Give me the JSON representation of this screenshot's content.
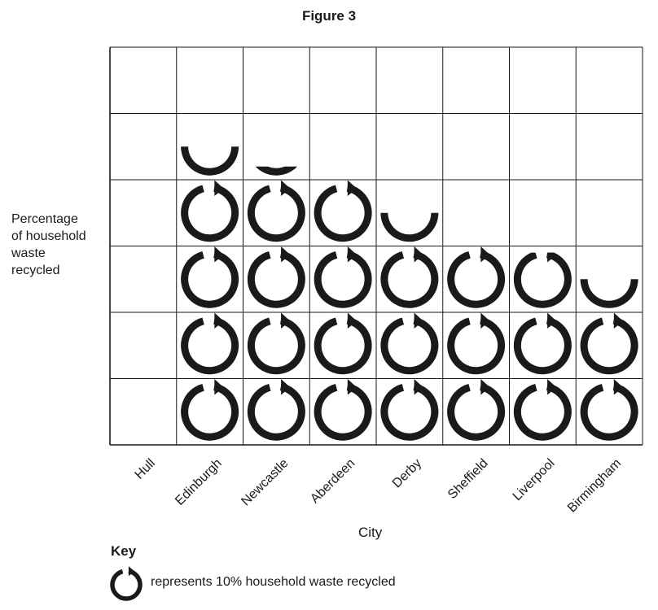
{
  "chart_data": {
    "type": "pictogram",
    "title": "Figure 3",
    "ylabel_lines": [
      "Percentage",
      "of household",
      "waste",
      "recycled"
    ],
    "xlabel": "City",
    "categories": [
      "Hull",
      "Edinburgh",
      "Newcastle",
      "Aberdeen",
      "Derby",
      "Sheffield",
      "Liverpool",
      "Birmingham"
    ],
    "values": [
      0,
      45,
      42,
      40,
      35,
      30,
      29,
      25
    ],
    "unit_per_symbol": 10,
    "ylim": [
      0,
      60
    ],
    "grid": true,
    "key": {
      "title": "Key",
      "description": "represents 10% household waste recycled",
      "symbol": "recycle-arrow-icon"
    },
    "colors": {
      "ink": "#1a1a1a",
      "grid": "#1a1a1a",
      "background": "#ffffff"
    }
  }
}
